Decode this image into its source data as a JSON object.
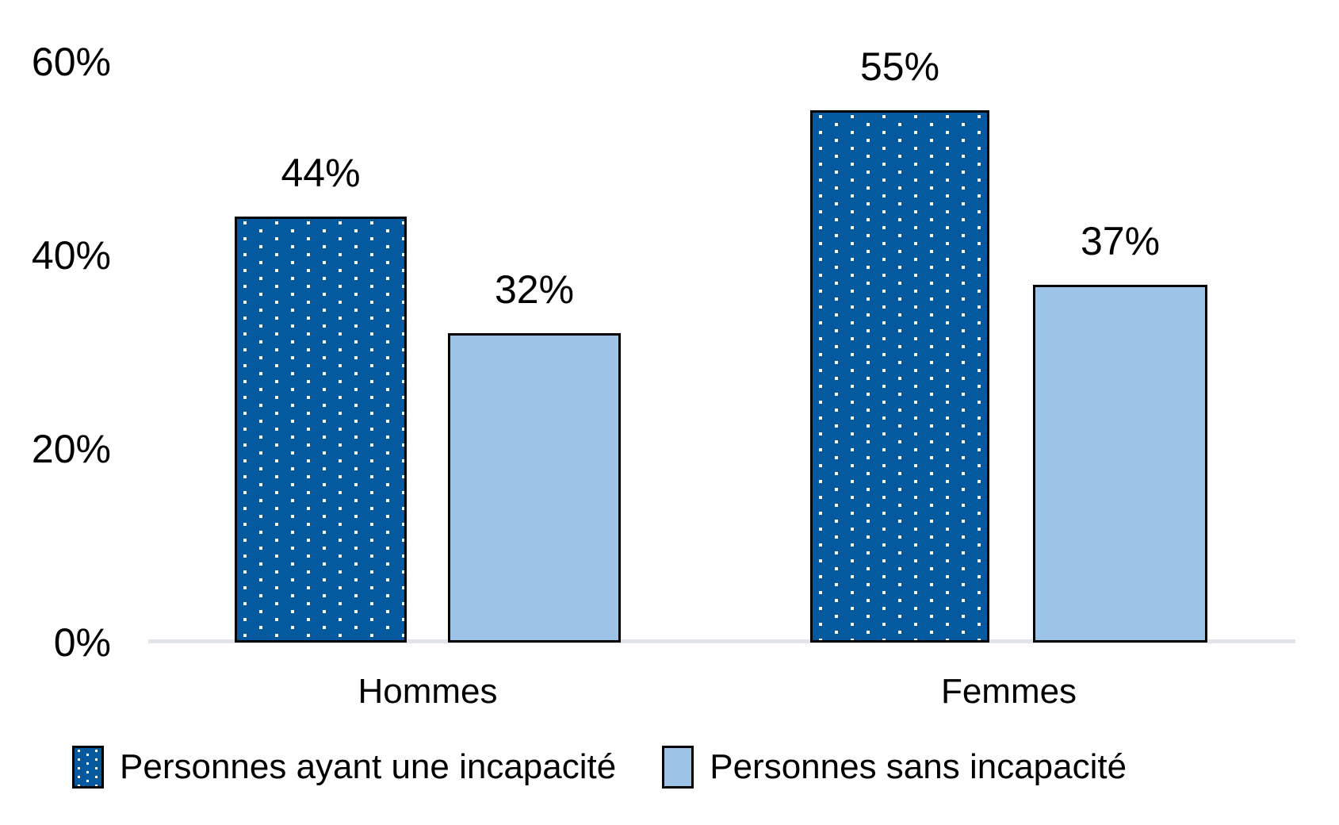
{
  "chart_data": {
    "type": "bar",
    "title": "",
    "categories": [
      "Hommes",
      "Femmes"
    ],
    "series": [
      {
        "name": "Personnes ayant une incapacité",
        "values": [
          44,
          55
        ],
        "fill": "#05599E",
        "pattern": "white-dots"
      },
      {
        "name": "Personnes sans incapacité",
        "values": [
          32,
          37
        ],
        "fill": "#9DC3E6",
        "pattern": "solid"
      }
    ],
    "value_labels_order": [
      "44%",
      "32%",
      "55%",
      "37%"
    ],
    "xlabel": "",
    "ylabel": "",
    "ylim": [
      0,
      60
    ],
    "y_ticks": [
      "0%",
      "20%",
      "40%",
      "60%"
    ],
    "grid": false,
    "legend_position": "bottom"
  },
  "y_axis": {
    "labels_top_to_bottom": [
      "60%",
      "40%",
      "20%",
      "0%"
    ]
  },
  "x_axis": {
    "categories": [
      "Hommes",
      "Femmes"
    ]
  },
  "legend": {
    "items": [
      {
        "label": "Personnes ayant une incapacité",
        "swatch": "dark-blue-dotted"
      },
      {
        "label": "Personnes sans incapacité",
        "swatch": "light-blue-solid"
      }
    ]
  },
  "colors": {
    "series1_fill": "#05599E",
    "series1_dot": "#FFFFFF",
    "series2_fill": "#9DC3E6",
    "bar_border": "#000000",
    "axis_line": "#E1E4EB",
    "text": "#000000",
    "background": "#FFFFFF"
  }
}
